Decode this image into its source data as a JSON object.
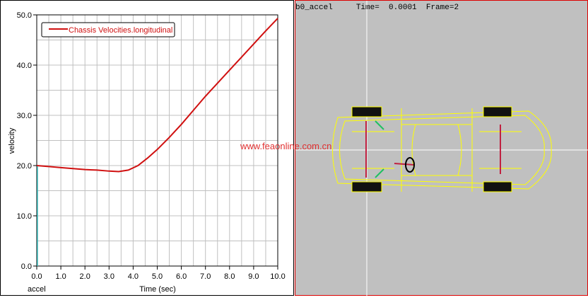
{
  "chart_data": {
    "type": "line",
    "xlabel": "Time (sec)",
    "ylabel": "velocity",
    "xlim": [
      0,
      10
    ],
    "ylim": [
      0,
      50
    ],
    "xticks": [
      "0.0",
      "1.0",
      "2.0",
      "3.0",
      "4.0",
      "5.0",
      "6.0",
      "7.0",
      "8.0",
      "9.0",
      "10.0"
    ],
    "yticks": [
      "0.0",
      "10.0",
      "20.0",
      "30.0",
      "40.0",
      "50.0"
    ],
    "grid": true,
    "legend_position": "top-left",
    "run_label": "accel",
    "series": [
      {
        "name": "Chassis Velocities.longitudinal",
        "color": "#d01010",
        "x": [
          0,
          0.5,
          1,
          1.5,
          2,
          2.5,
          3,
          3.4,
          3.8,
          4.2,
          4.6,
          5,
          5.5,
          6,
          6.5,
          7,
          7.5,
          8,
          8.5,
          9,
          9.5,
          10
        ],
        "y": [
          20,
          19.8,
          19.6,
          19.4,
          19.2,
          19.1,
          18.9,
          18.8,
          19.1,
          20,
          21.5,
          23.2,
          25.6,
          28.2,
          31,
          33.8,
          36.4,
          39,
          41.6,
          44.2,
          46.8,
          49.3
        ]
      }
    ]
  },
  "viewport": {
    "model": "b0_accel",
    "time_label": "Time=",
    "time_value": "0.0001",
    "frame_label": "Frame=2"
  },
  "watermark": "www.feaonline.com.cn"
}
